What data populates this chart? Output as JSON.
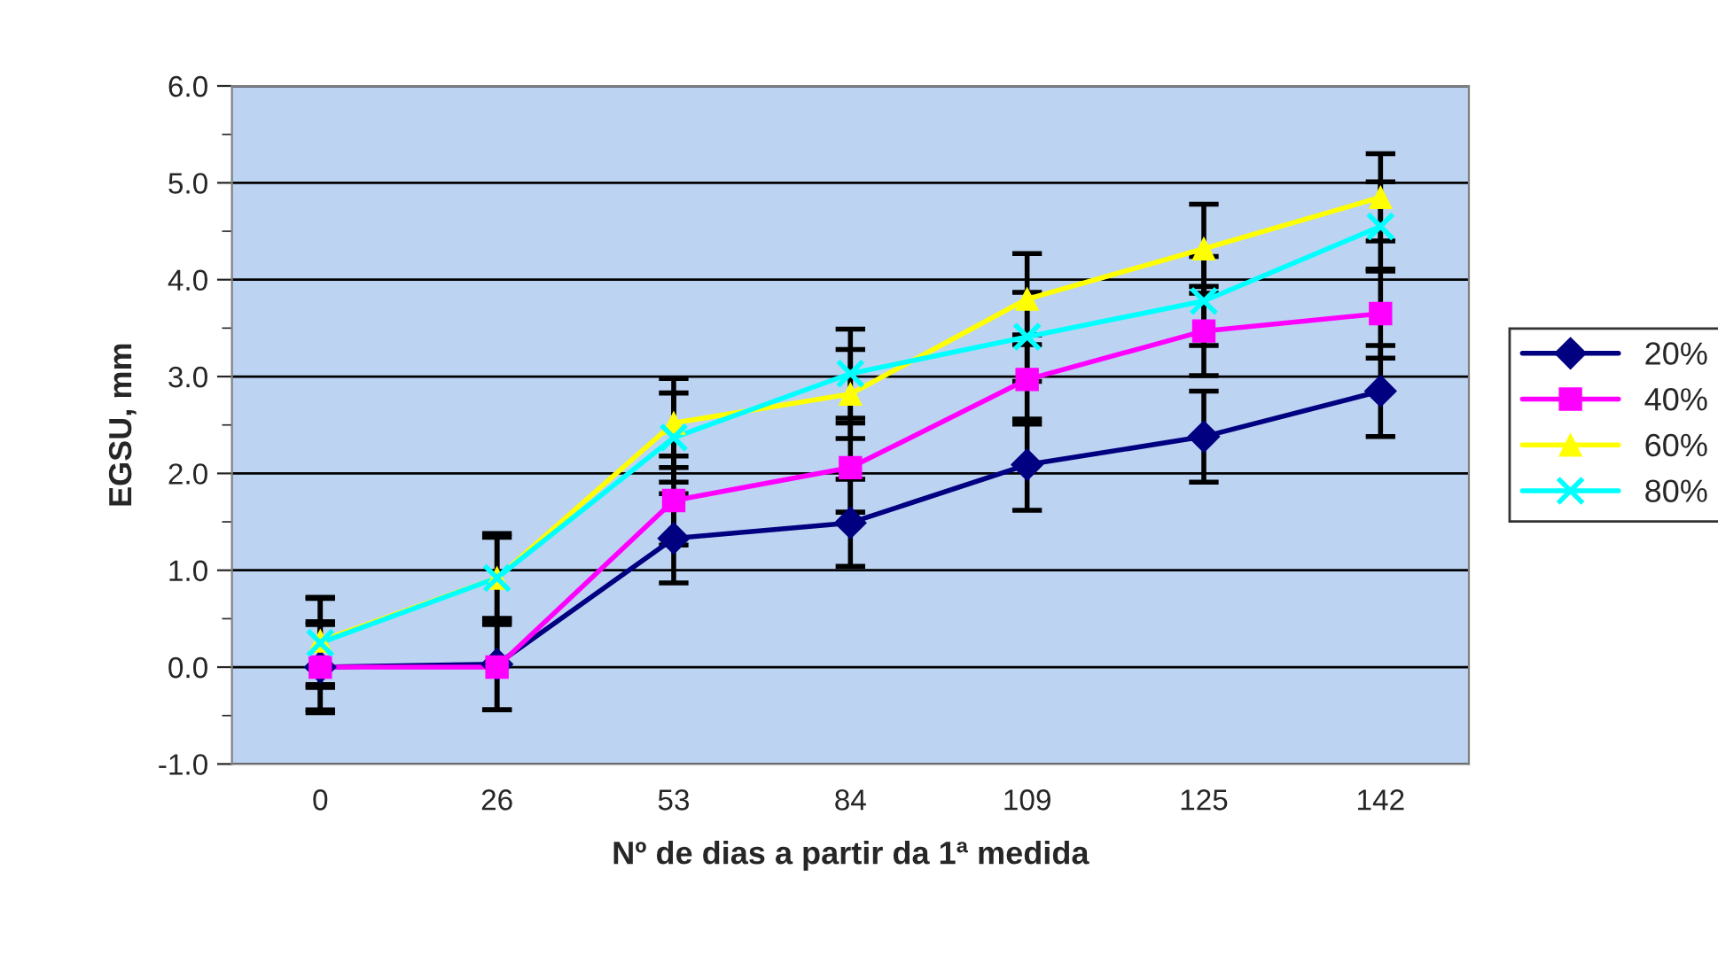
{
  "chart_data": {
    "type": "line",
    "xlabel": "Nº de dias a partir da 1ª medida",
    "ylabel": "EGSU, mm",
    "categories": [
      "0",
      "26",
      "53",
      "84",
      "109",
      "125",
      "142"
    ],
    "ylim": [
      -1.0,
      6.0
    ],
    "yticks": [
      {
        "value": -1,
        "label": "-1.0"
      },
      {
        "value": 0,
        "label": "0.0"
      },
      {
        "value": 1,
        "label": "1.0"
      },
      {
        "value": 2,
        "label": "2.0"
      },
      {
        "value": 3,
        "label": "3.0"
      },
      {
        "value": 4,
        "label": "4.0"
      },
      {
        "value": 5,
        "label": "5.0"
      },
      {
        "value": 6,
        "label": "6.0"
      }
    ],
    "grid": "y",
    "legend": "right",
    "series": [
      {
        "name": "20%",
        "color": "#000080",
        "marker": "diamond",
        "values": [
          0.0,
          0.03,
          1.33,
          1.49,
          2.09,
          2.38,
          2.85
        ],
        "errors": [
          0.47,
          0.47,
          0.46,
          0.45,
          0.47,
          0.47,
          0.47
        ]
      },
      {
        "name": "40%",
        "color": "#ff00ff",
        "marker": "square",
        "values": [
          0.0,
          0.0,
          1.72,
          2.06,
          2.97,
          3.47,
          3.65
        ],
        "errors": [
          0.44,
          0.44,
          0.46,
          0.46,
          0.46,
          0.46,
          0.46
        ]
      },
      {
        "name": "60%",
        "color": "#ffff00",
        "marker": "triangle",
        "values": [
          0.27,
          0.92,
          2.52,
          2.82,
          3.8,
          4.32,
          4.85
        ],
        "errors": [
          0.45,
          0.46,
          0.46,
          0.46,
          0.47,
          0.46,
          0.45
        ]
      },
      {
        "name": "80%",
        "color": "#00ffff",
        "marker": "cross",
        "values": [
          0.25,
          0.92,
          2.37,
          3.03,
          3.41,
          3.78,
          4.55
        ],
        "errors": [
          0.46,
          0.42,
          0.46,
          0.46,
          0.46,
          0.46,
          0.46
        ]
      }
    ]
  }
}
